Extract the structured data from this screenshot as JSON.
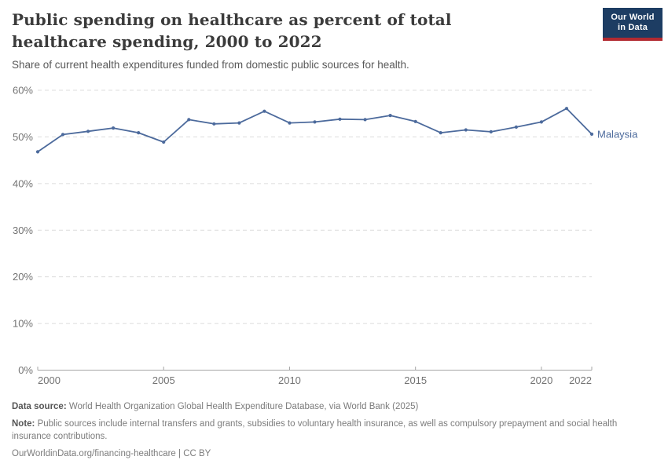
{
  "header": {
    "title": "Public spending on healthcare as percent of total healthcare spending, 2000 to 2022",
    "subtitle": "Share of current health expenditures funded from domestic public sources for health.",
    "logo": {
      "line1": "Our World",
      "line2": "in Data",
      "bg_color": "#1d3d63",
      "accent_color": "#b22a31",
      "text_color": "#ffffff"
    }
  },
  "chart_data": {
    "type": "line",
    "title": "Public spending on healthcare as percent of total healthcare spending, 2000 to 2022",
    "xlabel": "",
    "ylabel": "",
    "xlim": [
      2000,
      2022
    ],
    "ylim": [
      0,
      60
    ],
    "grid": "horizontal-dashed",
    "legend": "series-end-label",
    "x_ticks": [
      2000,
      2005,
      2010,
      2015,
      2020,
      2022
    ],
    "y_ticks": [
      {
        "value": 0,
        "label": "0%"
      },
      {
        "value": 10,
        "label": "10%"
      },
      {
        "value": 20,
        "label": "20%"
      },
      {
        "value": 30,
        "label": "30%"
      },
      {
        "value": 40,
        "label": "40%"
      },
      {
        "value": 50,
        "label": "50%"
      },
      {
        "value": 60,
        "label": "60%"
      }
    ],
    "x": [
      2000,
      2001,
      2002,
      2003,
      2004,
      2005,
      2006,
      2007,
      2008,
      2009,
      2010,
      2011,
      2012,
      2013,
      2014,
      2015,
      2016,
      2017,
      2018,
      2019,
      2020,
      2021,
      2022
    ],
    "series": [
      {
        "name": "Malaysia",
        "color": "#4C6A9C",
        "values": [
          46.8,
          50.5,
          51.2,
          51.9,
          50.9,
          48.9,
          53.7,
          52.8,
          53.0,
          55.5,
          53.0,
          53.2,
          53.8,
          53.7,
          54.6,
          53.3,
          50.9,
          51.5,
          51.1,
          52.1,
          53.2,
          56.1,
          50.6
        ]
      }
    ]
  },
  "footer": {
    "data_source_label": "Data source:",
    "data_source": "World Health Organization Global Health Expenditure Database, via World Bank (2025)",
    "note_label": "Note:",
    "note": "Public sources include internal transfers and grants, subsidies to voluntary health insurance, as well as compulsory prepayment and social health insurance contributions.",
    "citation": "OurWorldinData.org/financing-healthcare | CC BY"
  }
}
